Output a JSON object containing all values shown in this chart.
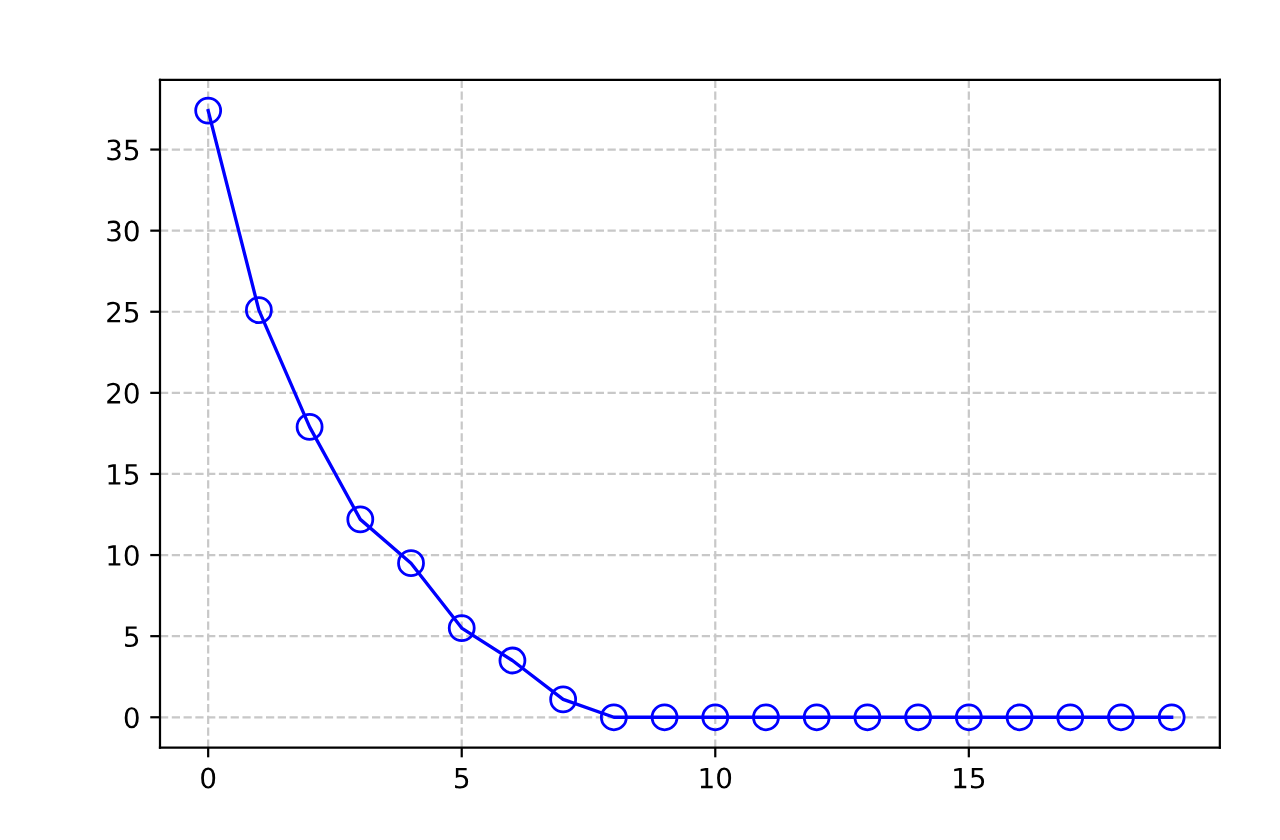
{
  "chart_data": {
    "type": "line",
    "x": [
      0,
      1,
      2,
      3,
      4,
      5,
      6,
      7,
      8,
      9,
      10,
      11,
      12,
      13,
      14,
      15,
      16,
      17,
      18,
      19
    ],
    "series": [
      {
        "color": "#0000ff",
        "values": [
          37.4,
          25.1,
          17.9,
          12.2,
          9.5,
          5.5,
          3.5,
          1.1,
          0,
          0,
          0,
          0,
          0,
          0,
          0,
          0,
          0,
          0,
          0,
          0
        ]
      }
    ],
    "xlim": [
      -0.95,
      19.95
    ],
    "ylim": [
      -1.87,
      39.3
    ],
    "xticks": [
      0,
      5,
      10,
      15
    ],
    "yticks": [
      0,
      5,
      10,
      15,
      20,
      25,
      30,
      35
    ],
    "grid": true,
    "marker": "circle",
    "line_style": "solid"
  }
}
